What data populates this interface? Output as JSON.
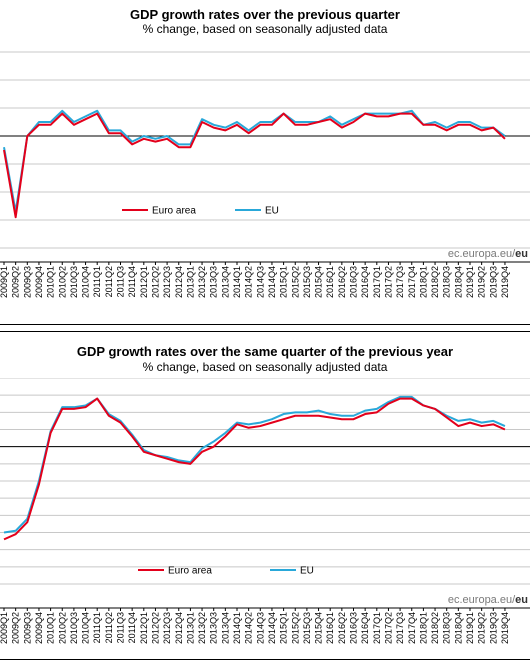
{
  "chart_data": [
    {
      "type": "line",
      "title": "GDP growth rates over the previous quarter",
      "subtitle": "% change, based on seasonally adjusted data",
      "source": "ec.europa.eu/",
      "source_bold": "eu",
      "ylim": [
        -4,
        3
      ],
      "grid": true,
      "legend_position": "bottom-center",
      "categories": [
        "2009Q1",
        "2009Q2",
        "2009Q3",
        "2009Q4",
        "2010Q1",
        "2010Q2",
        "2010Q3",
        "2010Q4",
        "2011Q1",
        "2011Q2",
        "2011Q3",
        "2011Q4",
        "2012Q1",
        "2012Q2",
        "2012Q3",
        "2012Q4",
        "2013Q1",
        "2013Q2",
        "2013Q3",
        "2013Q4",
        "2014Q1",
        "2014Q2",
        "2014Q3",
        "2014Q4",
        "2015Q1",
        "2015Q2",
        "2015Q3",
        "2015Q4",
        "2016Q1",
        "2016Q2",
        "2016Q3",
        "2016Q4",
        "2017Q1",
        "2017Q2",
        "2017Q3",
        "2017Q4",
        "2018Q1",
        "2018Q2",
        "2018Q3",
        "2018Q4",
        "2019Q1",
        "2019Q2",
        "2019Q3",
        "2019Q4"
      ],
      "series": [
        {
          "name": "Euro area",
          "color": "#e3001b",
          "values": [
            -0.5,
            -2.9,
            0.0,
            0.4,
            0.4,
            0.8,
            0.4,
            0.6,
            0.8,
            0.1,
            0.1,
            -0.3,
            -0.1,
            -0.2,
            -0.1,
            -0.4,
            -0.4,
            0.5,
            0.3,
            0.2,
            0.4,
            0.1,
            0.4,
            0.4,
            0.8,
            0.4,
            0.4,
            0.5,
            0.6,
            0.3,
            0.5,
            0.8,
            0.7,
            0.7,
            0.8,
            0.8,
            0.4,
            0.4,
            0.2,
            0.4,
            0.4,
            0.2,
            0.3,
            -0.1
          ]
        },
        {
          "name": "EU",
          "color": "#29a8d9",
          "values": [
            -0.4,
            -2.7,
            0.0,
            0.5,
            0.5,
            0.9,
            0.5,
            0.7,
            0.9,
            0.2,
            0.2,
            -0.2,
            0.0,
            -0.1,
            0.0,
            -0.3,
            -0.3,
            0.6,
            0.4,
            0.3,
            0.5,
            0.2,
            0.5,
            0.5,
            0.8,
            0.5,
            0.5,
            0.5,
            0.7,
            0.4,
            0.6,
            0.8,
            0.8,
            0.8,
            0.8,
            0.9,
            0.4,
            0.5,
            0.3,
            0.5,
            0.5,
            0.3,
            0.3,
            0.0
          ]
        }
      ]
    },
    {
      "type": "line",
      "title": "GDP growth rates over the same quarter of the previous year",
      "subtitle": "% change, based on seasonally adjusted data",
      "source": "ec.europa.eu/",
      "source_bold": "eu",
      "ylim": [
        -8,
        4
      ],
      "grid": true,
      "legend_position": "bottom-center",
      "categories": [
        "2009Q1",
        "2009Q2",
        "2009Q3",
        "2009Q4",
        "2010Q1",
        "2010Q2",
        "2010Q3",
        "2010Q4",
        "2011Q1",
        "2011Q2",
        "2011Q3",
        "2011Q4",
        "2012Q1",
        "2012Q2",
        "2012Q3",
        "2012Q4",
        "2013Q1",
        "2013Q2",
        "2013Q3",
        "2013Q4",
        "2014Q1",
        "2014Q2",
        "2014Q3",
        "2014Q4",
        "2015Q1",
        "2015Q2",
        "2015Q3",
        "2015Q4",
        "2016Q1",
        "2016Q2",
        "2016Q3",
        "2016Q4",
        "2017Q1",
        "2017Q2",
        "2017Q3",
        "2017Q4",
        "2018Q1",
        "2018Q2",
        "2018Q3",
        "2018Q4",
        "2019Q1",
        "2019Q2",
        "2019Q3",
        "2019Q4"
      ],
      "series": [
        {
          "name": "Euro area",
          "color": "#e3001b",
          "values": [
            -5.4,
            -5.1,
            -4.4,
            -2.2,
            0.8,
            2.2,
            2.2,
            2.3,
            2.8,
            1.8,
            1.4,
            0.6,
            -0.3,
            -0.5,
            -0.7,
            -0.9,
            -1.0,
            -0.3,
            0.0,
            0.6,
            1.3,
            1.1,
            1.2,
            1.4,
            1.6,
            1.8,
            1.8,
            1.8,
            1.7,
            1.6,
            1.6,
            1.9,
            2.0,
            2.5,
            2.8,
            2.8,
            2.4,
            2.2,
            1.7,
            1.2,
            1.4,
            1.2,
            1.3,
            1.0
          ]
        },
        {
          "name": "EU",
          "color": "#29a8d9",
          "values": [
            -5.0,
            -4.9,
            -4.2,
            -2.0,
            0.9,
            2.3,
            2.3,
            2.4,
            2.8,
            1.9,
            1.5,
            0.7,
            -0.2,
            -0.5,
            -0.6,
            -0.8,
            -0.9,
            -0.1,
            0.3,
            0.8,
            1.4,
            1.3,
            1.4,
            1.6,
            1.9,
            2.0,
            2.0,
            2.1,
            1.9,
            1.8,
            1.8,
            2.1,
            2.2,
            2.6,
            2.9,
            2.9,
            2.4,
            2.2,
            1.8,
            1.5,
            1.6,
            1.4,
            1.5,
            1.2
          ]
        }
      ]
    }
  ]
}
